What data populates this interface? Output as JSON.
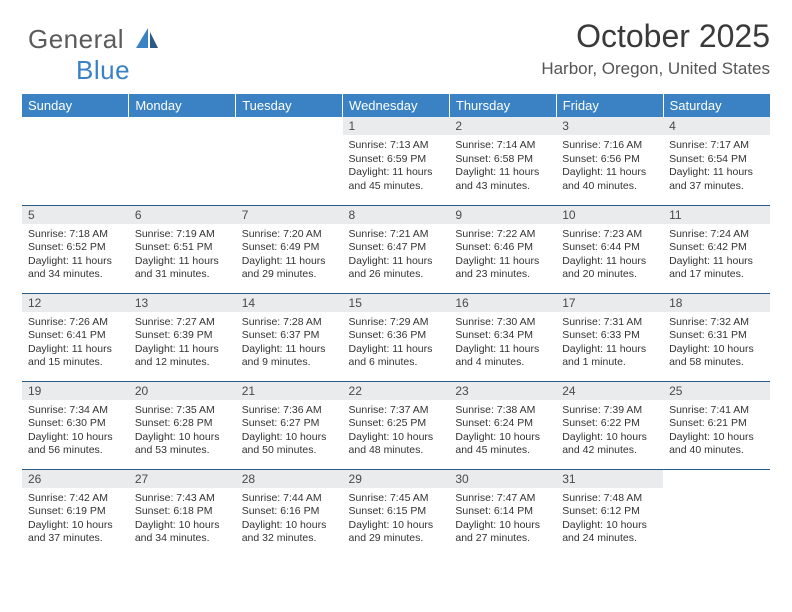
{
  "logo": {
    "general": "General",
    "blue": "Blue"
  },
  "title": "October 2025",
  "location": "Harbor, Oregon, United States",
  "colors": {
    "header_bg": "#3b82c4",
    "header_text": "#ffffff",
    "day_band_bg": "#e9ebec",
    "row_border": "#2c5a86",
    "logo_gray": "#5b5b5b",
    "logo_blue": "#3b82c4"
  },
  "day_headers": [
    "Sunday",
    "Monday",
    "Tuesday",
    "Wednesday",
    "Thursday",
    "Friday",
    "Saturday"
  ],
  "weeks": [
    [
      null,
      null,
      null,
      {
        "d": "1",
        "sr": "Sunrise: 7:13 AM",
        "ss": "Sunset: 6:59 PM",
        "dl1": "Daylight: 11 hours",
        "dl2": "and 45 minutes."
      },
      {
        "d": "2",
        "sr": "Sunrise: 7:14 AM",
        "ss": "Sunset: 6:58 PM",
        "dl1": "Daylight: 11 hours",
        "dl2": "and 43 minutes."
      },
      {
        "d": "3",
        "sr": "Sunrise: 7:16 AM",
        "ss": "Sunset: 6:56 PM",
        "dl1": "Daylight: 11 hours",
        "dl2": "and 40 minutes."
      },
      {
        "d": "4",
        "sr": "Sunrise: 7:17 AM",
        "ss": "Sunset: 6:54 PM",
        "dl1": "Daylight: 11 hours",
        "dl2": "and 37 minutes."
      }
    ],
    [
      {
        "d": "5",
        "sr": "Sunrise: 7:18 AM",
        "ss": "Sunset: 6:52 PM",
        "dl1": "Daylight: 11 hours",
        "dl2": "and 34 minutes."
      },
      {
        "d": "6",
        "sr": "Sunrise: 7:19 AM",
        "ss": "Sunset: 6:51 PM",
        "dl1": "Daylight: 11 hours",
        "dl2": "and 31 minutes."
      },
      {
        "d": "7",
        "sr": "Sunrise: 7:20 AM",
        "ss": "Sunset: 6:49 PM",
        "dl1": "Daylight: 11 hours",
        "dl2": "and 29 minutes."
      },
      {
        "d": "8",
        "sr": "Sunrise: 7:21 AM",
        "ss": "Sunset: 6:47 PM",
        "dl1": "Daylight: 11 hours",
        "dl2": "and 26 minutes."
      },
      {
        "d": "9",
        "sr": "Sunrise: 7:22 AM",
        "ss": "Sunset: 6:46 PM",
        "dl1": "Daylight: 11 hours",
        "dl2": "and 23 minutes."
      },
      {
        "d": "10",
        "sr": "Sunrise: 7:23 AM",
        "ss": "Sunset: 6:44 PM",
        "dl1": "Daylight: 11 hours",
        "dl2": "and 20 minutes."
      },
      {
        "d": "11",
        "sr": "Sunrise: 7:24 AM",
        "ss": "Sunset: 6:42 PM",
        "dl1": "Daylight: 11 hours",
        "dl2": "and 17 minutes."
      }
    ],
    [
      {
        "d": "12",
        "sr": "Sunrise: 7:26 AM",
        "ss": "Sunset: 6:41 PM",
        "dl1": "Daylight: 11 hours",
        "dl2": "and 15 minutes."
      },
      {
        "d": "13",
        "sr": "Sunrise: 7:27 AM",
        "ss": "Sunset: 6:39 PM",
        "dl1": "Daylight: 11 hours",
        "dl2": "and 12 minutes."
      },
      {
        "d": "14",
        "sr": "Sunrise: 7:28 AM",
        "ss": "Sunset: 6:37 PM",
        "dl1": "Daylight: 11 hours",
        "dl2": "and 9 minutes."
      },
      {
        "d": "15",
        "sr": "Sunrise: 7:29 AM",
        "ss": "Sunset: 6:36 PM",
        "dl1": "Daylight: 11 hours",
        "dl2": "and 6 minutes."
      },
      {
        "d": "16",
        "sr": "Sunrise: 7:30 AM",
        "ss": "Sunset: 6:34 PM",
        "dl1": "Daylight: 11 hours",
        "dl2": "and 4 minutes."
      },
      {
        "d": "17",
        "sr": "Sunrise: 7:31 AM",
        "ss": "Sunset: 6:33 PM",
        "dl1": "Daylight: 11 hours",
        "dl2": "and 1 minute."
      },
      {
        "d": "18",
        "sr": "Sunrise: 7:32 AM",
        "ss": "Sunset: 6:31 PM",
        "dl1": "Daylight: 10 hours",
        "dl2": "and 58 minutes."
      }
    ],
    [
      {
        "d": "19",
        "sr": "Sunrise: 7:34 AM",
        "ss": "Sunset: 6:30 PM",
        "dl1": "Daylight: 10 hours",
        "dl2": "and 56 minutes."
      },
      {
        "d": "20",
        "sr": "Sunrise: 7:35 AM",
        "ss": "Sunset: 6:28 PM",
        "dl1": "Daylight: 10 hours",
        "dl2": "and 53 minutes."
      },
      {
        "d": "21",
        "sr": "Sunrise: 7:36 AM",
        "ss": "Sunset: 6:27 PM",
        "dl1": "Daylight: 10 hours",
        "dl2": "and 50 minutes."
      },
      {
        "d": "22",
        "sr": "Sunrise: 7:37 AM",
        "ss": "Sunset: 6:25 PM",
        "dl1": "Daylight: 10 hours",
        "dl2": "and 48 minutes."
      },
      {
        "d": "23",
        "sr": "Sunrise: 7:38 AM",
        "ss": "Sunset: 6:24 PM",
        "dl1": "Daylight: 10 hours",
        "dl2": "and 45 minutes."
      },
      {
        "d": "24",
        "sr": "Sunrise: 7:39 AM",
        "ss": "Sunset: 6:22 PM",
        "dl1": "Daylight: 10 hours",
        "dl2": "and 42 minutes."
      },
      {
        "d": "25",
        "sr": "Sunrise: 7:41 AM",
        "ss": "Sunset: 6:21 PM",
        "dl1": "Daylight: 10 hours",
        "dl2": "and 40 minutes."
      }
    ],
    [
      {
        "d": "26",
        "sr": "Sunrise: 7:42 AM",
        "ss": "Sunset: 6:19 PM",
        "dl1": "Daylight: 10 hours",
        "dl2": "and 37 minutes."
      },
      {
        "d": "27",
        "sr": "Sunrise: 7:43 AM",
        "ss": "Sunset: 6:18 PM",
        "dl1": "Daylight: 10 hours",
        "dl2": "and 34 minutes."
      },
      {
        "d": "28",
        "sr": "Sunrise: 7:44 AM",
        "ss": "Sunset: 6:16 PM",
        "dl1": "Daylight: 10 hours",
        "dl2": "and 32 minutes."
      },
      {
        "d": "29",
        "sr": "Sunrise: 7:45 AM",
        "ss": "Sunset: 6:15 PM",
        "dl1": "Daylight: 10 hours",
        "dl2": "and 29 minutes."
      },
      {
        "d": "30",
        "sr": "Sunrise: 7:47 AM",
        "ss": "Sunset: 6:14 PM",
        "dl1": "Daylight: 10 hours",
        "dl2": "and 27 minutes."
      },
      {
        "d": "31",
        "sr": "Sunrise: 7:48 AM",
        "ss": "Sunset: 6:12 PM",
        "dl1": "Daylight: 10 hours",
        "dl2": "and 24 minutes."
      },
      null
    ]
  ]
}
